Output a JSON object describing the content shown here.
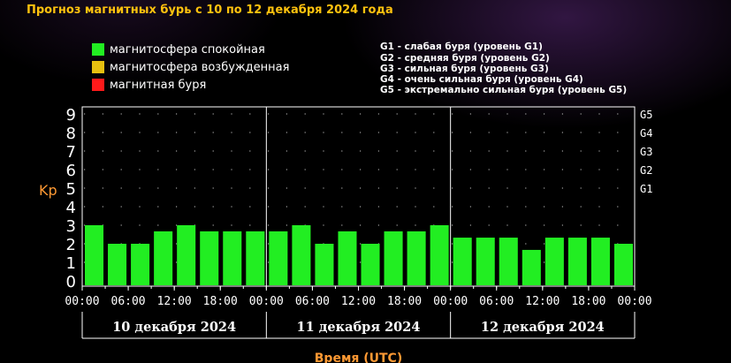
{
  "title": "Прогноз магнитных бурь с 10 по 12 декабря 2024 года",
  "legend": [
    {
      "label": "магнитосфера спокойная",
      "color": "#22ee22"
    },
    {
      "label": "магнитосфера возбужденная",
      "color": "#e8c010"
    },
    {
      "label": "магнитная буря",
      "color": "#ff1a1a"
    }
  ],
  "g_levels": [
    "G1 - слабая буря (уровень G1)",
    "G2 - средняя буря (уровень G2)",
    "G3 - сильная буря (уровень G3)",
    "G4 - очень сильная буря (уровень G4)",
    "G5 - экстремально сильная буря (уровень G5)"
  ],
  "colors": {
    "title": "#ffc20e",
    "axis_label": "#ff9933",
    "bar": "#22ee22",
    "grid_dots": "#9a9a9a",
    "axis": "#ffffff"
  },
  "chart_data": {
    "type": "bar",
    "ylabel": "Kp",
    "xlabel": "Время (UTC)",
    "ylim": [
      0,
      9
    ],
    "y_ticks": [
      "0",
      "1",
      "2",
      "3",
      "4",
      "5",
      "6",
      "7",
      "8",
      "9"
    ],
    "right_ticks": [
      {
        "label": "G1",
        "kp": 5
      },
      {
        "label": "G2",
        "kp": 6
      },
      {
        "label": "G3",
        "kp": 7
      },
      {
        "label": "G4",
        "kp": 8
      },
      {
        "label": "G5",
        "kp": 9
      }
    ],
    "x_tick_labels": [
      "00:00",
      "06:00",
      "12:00",
      "18:00",
      "00:00",
      "06:00",
      "12:00",
      "18:00",
      "00:00",
      "06:00",
      "12:00",
      "18:00",
      "00:00"
    ],
    "days": [
      "10 декабря 2024",
      "11 декабря 2024",
      "12 декабря 2024"
    ],
    "slots_per_day": 8,
    "values": [
      3.0,
      2.0,
      2.0,
      2.67,
      3.0,
      2.67,
      2.67,
      2.67,
      2.67,
      3.0,
      2.0,
      2.67,
      2.0,
      2.67,
      2.67,
      3.0,
      2.33,
      2.33,
      2.33,
      1.67,
      2.33,
      2.33,
      2.33,
      2.0
    ]
  }
}
